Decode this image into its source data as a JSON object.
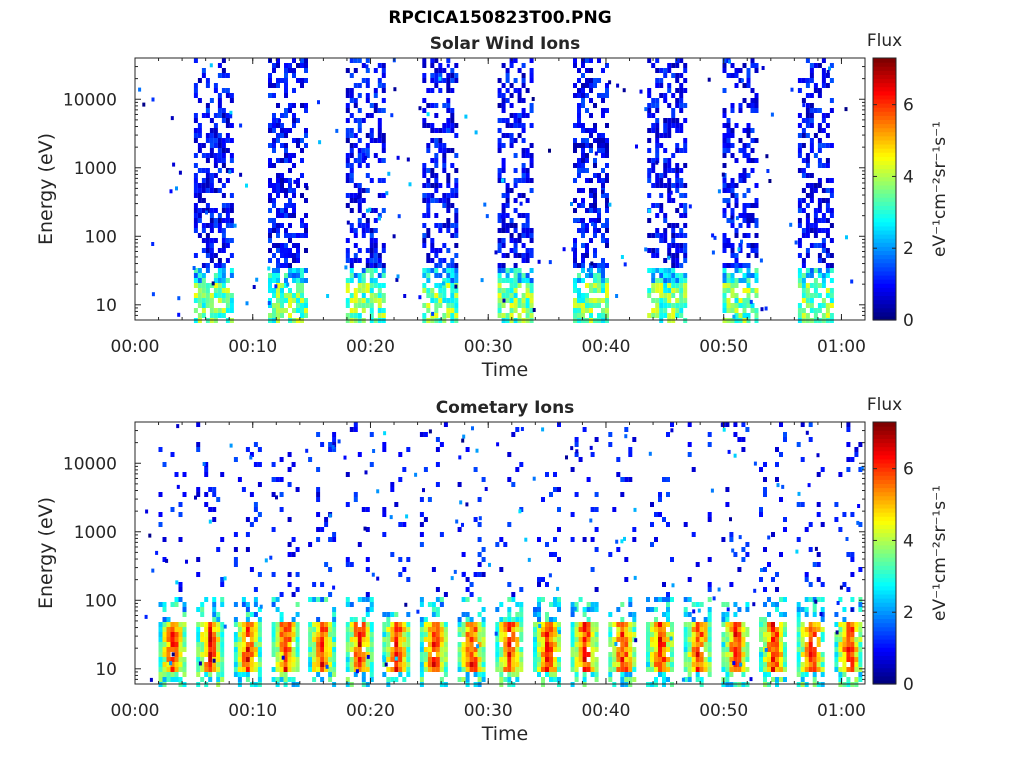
{
  "figure": {
    "file_title": "RPCICA150823T00.PNG"
  },
  "chart_data": [
    {
      "type": "heatmap",
      "title": "Solar Wind Ions",
      "xlabel": "Time",
      "ylabel": "Energy (eV)",
      "y_scale": "log",
      "ylim": [
        6,
        40000
      ],
      "xlim": [
        "00:00",
        "01:02"
      ],
      "x_ticks": [
        "00:00",
        "00:10",
        "00:20",
        "00:30",
        "00:40",
        "00:50",
        "01:00"
      ],
      "y_ticks": [
        "10",
        "100",
        "1000",
        "10000"
      ],
      "colorbar": {
        "label": "eV⁻¹cm⁻²sr⁻¹s⁻¹",
        "title": "Flux",
        "ticks": [
          "0",
          "2",
          "4",
          "6"
        ],
        "range": [
          0,
          7.3
        ],
        "colormap": "jet"
      },
      "bursts": [
        {
          "start_min": 5.0,
          "end_min": 8.1,
          "peak_flux": 4.0
        },
        {
          "start_min": 11.3,
          "end_min": 14.4,
          "peak_flux": 4.0
        },
        {
          "start_min": 17.9,
          "end_min": 21.0,
          "peak_flux": 4.0
        },
        {
          "start_min": 24.4,
          "end_min": 27.4,
          "peak_flux": 4.0
        },
        {
          "start_min": 30.8,
          "end_min": 33.8,
          "peak_flux": 4.0
        },
        {
          "start_min": 37.2,
          "end_min": 40.2,
          "peak_flux": 4.0
        },
        {
          "start_min": 43.5,
          "end_min": 46.6,
          "peak_flux": 4.0
        },
        {
          "start_min": 49.9,
          "end_min": 52.9,
          "peak_flux": 4.0
        },
        {
          "start_min": 56.3,
          "end_min": 59.3,
          "peak_flux": 4.0
        }
      ]
    },
    {
      "type": "heatmap",
      "title": "Cometary Ions",
      "xlabel": "Time",
      "ylabel": "Energy (eV)",
      "y_scale": "log",
      "ylim": [
        6,
        40000
      ],
      "xlim": [
        "00:00",
        "01:02"
      ],
      "x_ticks": [
        "00:00",
        "00:10",
        "00:20",
        "00:30",
        "00:40",
        "00:50",
        "01:00"
      ],
      "y_ticks": [
        "10",
        "100",
        "1000",
        "10000"
      ],
      "colorbar": {
        "label": "eV⁻¹cm⁻²sr⁻¹s⁻¹",
        "title": "Flux",
        "ticks": [
          "0",
          "2",
          "4",
          "6"
        ],
        "range": [
          0,
          7.3
        ],
        "colormap": "jet"
      },
      "bursts": [
        {
          "start_min": 2.0,
          "end_min": 4.2,
          "peak_flux": 7.0
        },
        {
          "start_min": 5.2,
          "end_min": 7.3,
          "peak_flux": 7.0
        },
        {
          "start_min": 8.4,
          "end_min": 10.5,
          "peak_flux": 7.0
        },
        {
          "start_min": 11.6,
          "end_min": 13.7,
          "peak_flux": 7.0
        },
        {
          "start_min": 14.7,
          "end_min": 16.8,
          "peak_flux": 7.0
        },
        {
          "start_min": 17.9,
          "end_min": 20.0,
          "peak_flux": 7.0
        },
        {
          "start_min": 21.0,
          "end_min": 23.2,
          "peak_flux": 7.0
        },
        {
          "start_min": 24.2,
          "end_min": 26.4,
          "peak_flux": 7.0
        },
        {
          "start_min": 27.4,
          "end_min": 29.6,
          "peak_flux": 7.0
        },
        {
          "start_min": 30.6,
          "end_min": 32.8,
          "peak_flux": 7.0
        },
        {
          "start_min": 33.8,
          "end_min": 36.0,
          "peak_flux": 7.0
        },
        {
          "start_min": 37.0,
          "end_min": 39.2,
          "peak_flux": 7.0
        },
        {
          "start_min": 40.2,
          "end_min": 42.4,
          "peak_flux": 7.0
        },
        {
          "start_min": 43.4,
          "end_min": 45.6,
          "peak_flux": 7.0
        },
        {
          "start_min": 46.6,
          "end_min": 48.8,
          "peak_flux": 7.0
        },
        {
          "start_min": 49.8,
          "end_min": 52.0,
          "peak_flux": 7.0
        },
        {
          "start_min": 53.0,
          "end_min": 55.2,
          "peak_flux": 7.0
        },
        {
          "start_min": 56.2,
          "end_min": 58.4,
          "peak_flux": 7.0
        },
        {
          "start_min": 59.4,
          "end_min": 61.6,
          "peak_flux": 7.0
        }
      ]
    }
  ]
}
